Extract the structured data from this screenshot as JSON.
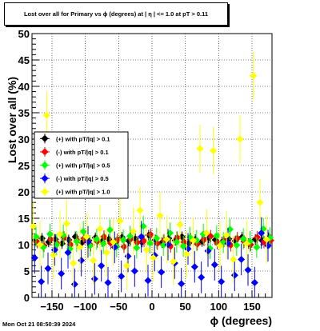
{
  "title": "Lost over all for Primary vs ϕ (degrees) at |  η | <= 1.0 at pT > 0.11",
  "timestamp": "Mon Oct 21 08:50:39 2024",
  "colors": {
    "black": "#000000",
    "red": "#ff0000",
    "green": "#00ff00",
    "blue": "#0000ff",
    "yellow": "#ffff00"
  },
  "chart_data": {
    "type": "scatter",
    "xlabel": "ϕ (degrees)",
    "ylabel": "Lost over all (%)",
    "xlim": [
      -180,
      180
    ],
    "ylim": [
      0,
      50
    ],
    "x_ticks": [
      -150,
      -100,
      -50,
      0,
      50,
      100,
      150
    ],
    "y_ticks": [
      0,
      5,
      10,
      15,
      20,
      25,
      30,
      35,
      40,
      45,
      50
    ],
    "grid": true,
    "legend_position": "left-middle",
    "series": [
      {
        "name": "(+) with pT/|q| > 0.1",
        "color": "black",
        "x": [
          -175,
          -165,
          -155,
          -145,
          -135,
          -125,
          -115,
          -105,
          -95,
          -85,
          -75,
          -65,
          -55,
          -45,
          -35,
          -25,
          -15,
          -5,
          5,
          15,
          25,
          35,
          45,
          55,
          65,
          75,
          85,
          95,
          105,
          115,
          125,
          135,
          145,
          155,
          165,
          175
        ],
        "y": [
          10.8,
          11.2,
          10.5,
          11.0,
          10.2,
          10.9,
          11.5,
          10.4,
          10.8,
          11.3,
          10.6,
          11.0,
          10.3,
          11.4,
          10.7,
          11.1,
          10.5,
          11.8,
          10.9,
          10.4,
          11.2,
          10.8,
          11.5,
          10.3,
          11.0,
          10.6,
          11.3,
          10.9,
          10.5,
          11.1,
          10.7,
          11.4,
          10.2,
          11.0,
          10.8,
          11.3
        ],
        "yerr": 1.0
      },
      {
        "name": "(-) with pT/|q| > 0.1",
        "color": "red",
        "x": [
          -172,
          -162,
          -152,
          -142,
          -132,
          -122,
          -112,
          -102,
          -92,
          -82,
          -72,
          -62,
          -52,
          -42,
          -32,
          -22,
          -12,
          -2,
          8,
          18,
          28,
          38,
          48,
          58,
          68,
          78,
          88,
          98,
          108,
          118,
          128,
          138,
          148,
          158,
          168,
          178
        ],
        "y": [
          10.5,
          9.8,
          11.0,
          10.2,
          11.4,
          10.0,
          10.8,
          11.2,
          9.9,
          10.6,
          11.5,
          10.3,
          10.9,
          9.6,
          11.1,
          10.4,
          10.7,
          11.9,
          10.2,
          10.8,
          9.7,
          11.3,
          10.5,
          11.0,
          10.1,
          10.9,
          11.6,
          10.3,
          10.7,
          9.9,
          11.2,
          10.6,
          10.0,
          11.4,
          10.5,
          10.8
        ],
        "yerr": 1.2
      },
      {
        "name": "(+) with pT/|q| > 0.5",
        "color": "green",
        "x": [
          -174,
          -163,
          -153,
          -143,
          -133,
          -123,
          -113,
          -103,
          -93,
          -83,
          -73,
          -63,
          -53,
          -43,
          -33,
          -23,
          -13,
          -3,
          7,
          17,
          27,
          37,
          47,
          57,
          67,
          77,
          87,
          97,
          107,
          117,
          127,
          137,
          147,
          157,
          167,
          177
        ],
        "y": [
          11.5,
          9.5,
          12.0,
          10.0,
          11.8,
          9.2,
          10.6,
          12.5,
          9.8,
          11.0,
          10.2,
          12.8,
          9.6,
          10.9,
          11.6,
          9.4,
          13.5,
          10.3,
          11.2,
          9.9,
          12.2,
          10.5,
          9.7,
          11.4,
          10.8,
          12.0,
          9.3,
          11.7,
          10.4,
          12.9,
          9.9,
          11.1,
          10.6,
          9.5,
          13.0,
          11.3
        ],
        "yerr": 2.0
      },
      {
        "name": "(-) with pT/|q| > 0.5",
        "color": "blue",
        "x": [
          -176,
          -166,
          -156,
          -146,
          -136,
          -126,
          -116,
          -106,
          -96,
          -86,
          -76,
          -66,
          -56,
          -46,
          -36,
          -26,
          -16,
          -6,
          4,
          14,
          24,
          34,
          44,
          54,
          64,
          74,
          84,
          94,
          104,
          114,
          124,
          134,
          144,
          154,
          164,
          174
        ],
        "y": [
          7.5,
          3.0,
          5.5,
          9.0,
          4.5,
          8.5,
          2.5,
          7.0,
          10.5,
          3.5,
          6.0,
          2.8,
          9.5,
          4.0,
          7.8,
          5.0,
          11.5,
          3.2,
          8.0,
          4.8,
          10.0,
          6.5,
          2.6,
          9.2,
          5.8,
          3.8,
          8.8,
          6.2,
          3.0,
          10.2,
          4.2,
          7.2,
          5.2,
          2.8,
          12.2,
          9.8
        ],
        "yerr": 3.0
      },
      {
        "name": "(+) with pT/|q| > 1.0",
        "color": "yellow",
        "x": [
          -178,
          -168,
          -158,
          -148,
          -138,
          -128,
          -118,
          -108,
          -98,
          -88,
          -78,
          -68,
          -58,
          -48,
          -38,
          -28,
          -18,
          -8,
          2,
          12,
          22,
          32,
          42,
          52,
          62,
          72,
          82,
          92,
          102,
          112,
          122,
          132,
          142,
          152,
          162,
          172
        ],
        "y": [
          13.5,
          10.0,
          34.5,
          8.0,
          12.0,
          14.0,
          6.5,
          9.5,
          11.5,
          7.0,
          13.0,
          8.5,
          10.5,
          14.5,
          6.0,
          12.5,
          16.5,
          9.0,
          7.5,
          15.5,
          11.0,
          6.8,
          13.8,
          8.2,
          10.8,
          28.2,
          12.2,
          27.8,
          9.8,
          11.8,
          7.2,
          30.0,
          10.2,
          42.0,
          18.0,
          11.0
        ],
        "yerr": 4.5
      }
    ]
  }
}
